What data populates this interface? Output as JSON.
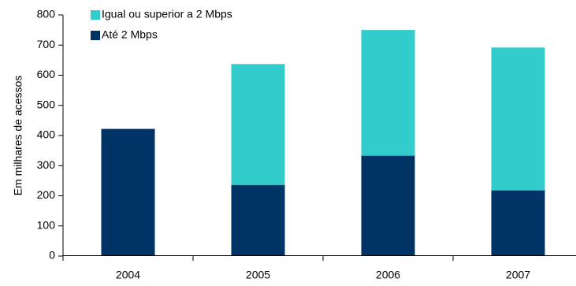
{
  "chart_data": {
    "type": "bar",
    "stacked": true,
    "title": "",
    "xlabel": "",
    "ylabel": "Em milhares de acessos",
    "ylim": [
      0,
      800
    ],
    "y_ticks": [
      "0",
      "100",
      "200",
      "300",
      "400",
      "500",
      "600",
      "700",
      "800"
    ],
    "categories": [
      "2004",
      "2005",
      "2006",
      "2007"
    ],
    "series": [
      {
        "name": "Até 2 Mbps",
        "color": "#003366",
        "values": [
          422,
          236,
          333,
          218
        ]
      },
      {
        "name": "Igual ou superior a 2 Mbps",
        "color": "#33CCCC",
        "values": [
          0,
          401,
          417,
          474
        ]
      }
    ],
    "legend": {
      "position": "top-left",
      "entries": [
        "Igual ou superior a 2 Mbps",
        "Até 2 Mbps"
      ]
    },
    "grid": false
  }
}
